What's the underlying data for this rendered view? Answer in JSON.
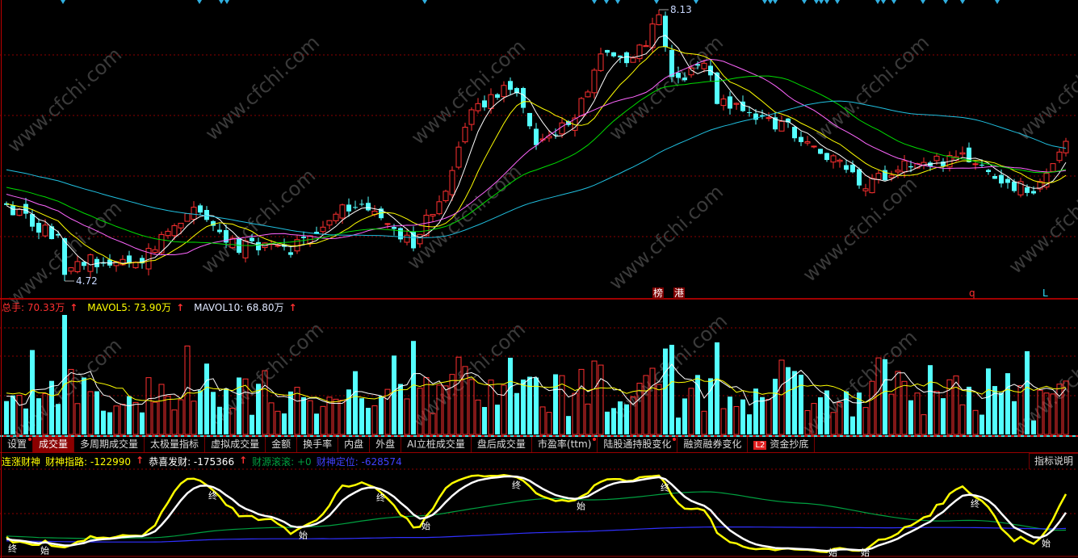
{
  "watermark": "www.cfchi.com",
  "price_labels": {
    "high": "8.13",
    "low": "4.72"
  },
  "markers": [
    {
      "text": "榜",
      "color": "#ffffff",
      "bg": "#800000"
    },
    {
      "text": "港",
      "color": "#ffffff",
      "bg": "#800000"
    },
    {
      "text": "q",
      "color": "#ff3030",
      "bg": ""
    },
    {
      "text": "L",
      "color": "#30e0ff",
      "bg": ""
    }
  ],
  "volume_legend": {
    "total": "总手: 70.33万",
    "mavol5": "MAVOL5: 73.90万",
    "mavol10": "MAVOL10: 68.80万",
    "arrow": "↑"
  },
  "tabs": [
    {
      "label": "设置",
      "dot": true
    },
    {
      "label": "成交量",
      "active": true
    },
    {
      "label": "多周期成交量"
    },
    {
      "label": "太极量指标"
    },
    {
      "label": "虚拟成交量"
    },
    {
      "label": "金额"
    },
    {
      "label": "换手率"
    },
    {
      "label": "内盘"
    },
    {
      "label": "外盘"
    },
    {
      "label": "AI立桩成交量"
    },
    {
      "label": "盘后成交量"
    },
    {
      "label": "市盈率(ttm)",
      "dot": true
    },
    {
      "label": "陆股通持股变化",
      "dot": true
    },
    {
      "label": "融资融券变化"
    },
    {
      "label": "资金抄底",
      "badge": "L2"
    }
  ],
  "indicator": {
    "name": "连涨财神",
    "items": [
      {
        "label": "财神指路: -122990",
        "color": "#ffff00"
      },
      {
        "label": "恭喜发财: -175366",
        "color": "#ffffff"
      },
      {
        "label": "财源滚滚: +0",
        "color": "#00a040"
      },
      {
        "label": "财神定位: -628574",
        "color": "#4040ff"
      }
    ],
    "arrow": "↑",
    "help_label": "指标说明",
    "signals": {
      "start": "始",
      "end": "终"
    }
  },
  "colors": {
    "up": "#ff3030",
    "down": "#54ffff",
    "grid": "#8b0000",
    "ma5": "#ffffff",
    "ma10": "#ffff00",
    "ma20": "#ff66ff",
    "ma30": "#00dd00",
    "ma60": "#20c0e0"
  },
  "chart_data": {
    "type": "candlestick",
    "price_high": 8.13,
    "price_low": 4.72,
    "price_path": [
      {
        "bar": 0,
        "close": 5.72
      },
      {
        "bar": 8,
        "close": 5.36
      },
      {
        "bar": 9,
        "close": 4.9
      },
      {
        "bar": 13,
        "close": 5.1
      },
      {
        "bar": 20,
        "close": 5.02
      },
      {
        "bar": 28,
        "close": 5.72
      },
      {
        "bar": 36,
        "close": 5.26
      },
      {
        "bar": 44,
        "close": 5.21
      },
      {
        "bar": 54,
        "close": 5.82
      },
      {
        "bar": 63,
        "close": 5.31
      },
      {
        "bar": 69,
        "close": 6.12
      },
      {
        "bar": 72,
        "close": 6.93
      },
      {
        "bar": 78,
        "close": 7.24
      },
      {
        "bar": 82,
        "close": 6.48
      },
      {
        "bar": 87,
        "close": 6.73
      },
      {
        "bar": 92,
        "close": 7.54
      },
      {
        "bar": 97,
        "close": 7.54
      },
      {
        "bar": 101,
        "close": 8.0
      },
      {
        "bar": 103,
        "close": 7.29
      },
      {
        "bar": 108,
        "close": 7.49
      },
      {
        "bar": 110,
        "close": 7.03
      },
      {
        "bar": 117,
        "close": 6.83
      },
      {
        "bar": 124,
        "close": 6.58
      },
      {
        "bar": 133,
        "close": 5.97
      },
      {
        "bar": 138,
        "close": 6.27
      },
      {
        "bar": 149,
        "close": 6.32
      },
      {
        "bar": 159,
        "close": 5.87
      },
      {
        "bar": 164,
        "close": 6.48
      }
    ],
    "moving_averages": [
      "MA5",
      "MA10",
      "MA20",
      "MA30",
      "MA60"
    ],
    "volume_series": [
      "VOL",
      "MAVOL5",
      "MAVOL10"
    ],
    "indicator_series": [
      "财神指路",
      "恭喜发财",
      "财源滚滚",
      "财神定位"
    ]
  }
}
